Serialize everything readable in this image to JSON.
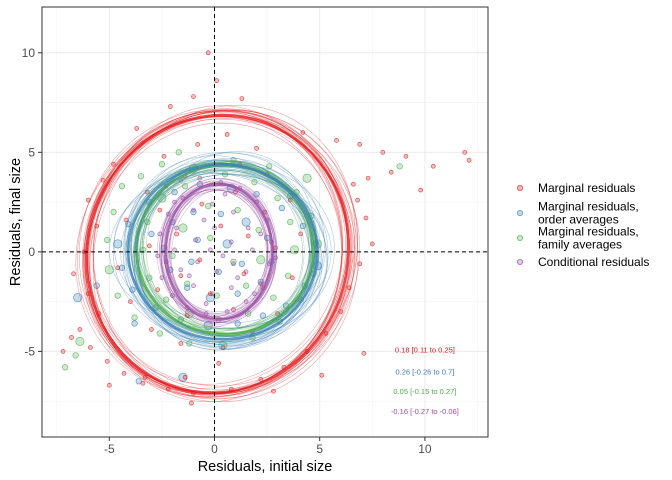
{
  "chart_data": {
    "type": "scatter",
    "xlabel": "Residuals, initial size",
    "ylabel": "Residuals, final size",
    "xlim": [
      -8.2,
      13.0
    ],
    "ylim": [
      -9.3,
      12.3
    ],
    "x_ticks": [
      -5,
      0,
      5,
      10
    ],
    "y_ticks": [
      -5,
      0,
      5,
      10
    ],
    "x_tick_labels": [
      "-5",
      "0",
      "5",
      "10"
    ],
    "y_tick_labels": [
      "-5",
      "0",
      "5",
      "10"
    ],
    "grid": true,
    "reference_lines": [
      {
        "orientation": "vertical",
        "value": 0,
        "style": "dashed"
      },
      {
        "orientation": "horizontal",
        "value": 0,
        "style": "dashed"
      }
    ],
    "legend_position": "right",
    "series": [
      {
        "name": "Marginal residuals",
        "color": "#e41a1c",
        "correlation_label": "0.18 [0.11 to 0.25]",
        "ellipse": {
          "cx": 0.15,
          "cy": -0.1,
          "rx": 6.2,
          "ry": 7.0,
          "tilt_deg": -10
        },
        "points": [
          [
            -0.3,
            10.0
          ],
          [
            0.1,
            8.6
          ],
          [
            -1.0,
            7.8
          ],
          [
            1.3,
            7.7
          ],
          [
            -2.1,
            7.3
          ],
          [
            -3.7,
            6.2
          ],
          [
            4.2,
            6.0
          ],
          [
            5.8,
            5.6
          ],
          [
            6.9,
            5.4
          ],
          [
            8.0,
            5.0
          ],
          [
            9.1,
            4.8
          ],
          [
            10.4,
            4.3
          ],
          [
            11.9,
            5.0
          ],
          [
            12.1,
            4.6
          ],
          [
            8.4,
            4.0
          ],
          [
            7.3,
            3.7
          ],
          [
            6.6,
            3.4
          ],
          [
            9.8,
            3.1
          ],
          [
            -4.8,
            4.4
          ],
          [
            -5.3,
            3.6
          ],
          [
            -6.0,
            2.6
          ],
          [
            -5.6,
            1.3
          ],
          [
            -6.2,
            0.0
          ],
          [
            -6.7,
            -1.1
          ],
          [
            -6.0,
            -2.1
          ],
          [
            -5.5,
            -3.1
          ],
          [
            -6.4,
            -3.9
          ],
          [
            -5.9,
            -4.8
          ],
          [
            -5.1,
            -5.5
          ],
          [
            -4.3,
            -6.1
          ],
          [
            -3.4,
            -6.6
          ],
          [
            -2.2,
            -6.9
          ],
          [
            -1.0,
            -7.1
          ],
          [
            0.8,
            -6.9
          ],
          [
            2.2,
            -6.4
          ],
          [
            3.3,
            -5.8
          ],
          [
            4.4,
            -5.0
          ],
          [
            5.3,
            -4.1
          ],
          [
            6.0,
            -3.0
          ],
          [
            6.4,
            -1.8
          ],
          [
            6.9,
            -0.6
          ],
          [
            7.5,
            0.4
          ],
          [
            7.2,
            1.7
          ],
          [
            6.8,
            2.6
          ],
          [
            2.0,
            5.2
          ],
          [
            0.6,
            5.9
          ],
          [
            -0.8,
            5.4
          ],
          [
            -2.4,
            4.8
          ],
          [
            -3.2,
            3.0
          ],
          [
            -4.2,
            1.6
          ],
          [
            -4.6,
            -0.8
          ],
          [
            -4.0,
            -2.5
          ],
          [
            -3.0,
            -3.9
          ],
          [
            -1.6,
            -4.6
          ],
          [
            0.4,
            -4.8
          ],
          [
            1.8,
            -4.0
          ],
          [
            3.0,
            -3.1
          ],
          [
            3.7,
            -1.3
          ],
          [
            4.1,
            0.9
          ],
          [
            3.6,
            2.6
          ],
          [
            2.5,
            3.9
          ],
          [
            1.2,
            4.4
          ],
          [
            -1.4,
            3.8
          ],
          [
            -2.6,
            2.1
          ],
          [
            -3.1,
            0.3
          ],
          [
            -2.7,
            -1.9
          ],
          [
            -1.3,
            -3.2
          ],
          [
            0.9,
            -2.9
          ],
          [
            2.3,
            -1.8
          ],
          [
            2.9,
            0.2
          ],
          [
            2.4,
            2.0
          ],
          [
            1.0,
            3.0
          ],
          [
            -0.6,
            2.4
          ],
          [
            -1.8,
            0.9
          ],
          [
            -1.6,
            -1.2
          ],
          [
            -0.2,
            -2.1
          ],
          [
            1.4,
            -1.1
          ],
          [
            1.6,
            0.8
          ],
          [
            0.3,
            1.3
          ],
          [
            -0.7,
            -0.4
          ],
          [
            -6.8,
            -4.3
          ],
          [
            -7.2,
            -5.0
          ],
          [
            -3.3,
            -6.3
          ],
          [
            -1.1,
            -7.6
          ],
          [
            2.8,
            -7.0
          ],
          [
            5.1,
            -6.2
          ],
          [
            7.1,
            -5.1
          ],
          [
            -5.0,
            -6.7
          ],
          [
            -1.4,
            -6.3
          ],
          [
            0.2,
            -5.6
          ]
        ]
      },
      {
        "name": "Marginal residuals,\norder averages",
        "color": "#377eb8",
        "correlation_label": "0.26 [-0.26 to 0.7]",
        "ellipse": {
          "cx": 0.4,
          "cy": 0.0,
          "rx": 4.5,
          "ry": 4.4,
          "tilt_deg": -5
        },
        "points": [
          [
            -6.5,
            -2.3
          ],
          [
            -3.8,
            -3.6
          ],
          [
            -3.1,
            2.5
          ],
          [
            -1.9,
            3.0
          ],
          [
            -0.7,
            3.4
          ],
          [
            0.8,
            3.2
          ],
          [
            2.0,
            2.9
          ],
          [
            3.2,
            2.2
          ],
          [
            4.2,
            1.3
          ],
          [
            4.8,
            0.4
          ],
          [
            4.9,
            -0.7
          ],
          [
            4.3,
            -1.7
          ],
          [
            3.4,
            -2.7
          ],
          [
            2.3,
            -3.2
          ],
          [
            1.1,
            -3.6
          ],
          [
            -0.3,
            -3.7
          ],
          [
            -1.6,
            -3.4
          ],
          [
            -2.8,
            -2.8
          ],
          [
            -3.9,
            -1.9
          ],
          [
            -4.4,
            -0.8
          ],
          [
            -4.6,
            0.4
          ],
          [
            -4.1,
            1.4
          ],
          [
            -2.0,
            1.5
          ],
          [
            -1.0,
            2.0
          ],
          [
            0.3,
            1.9
          ],
          [
            1.5,
            1.5
          ],
          [
            2.5,
            0.7
          ],
          [
            2.7,
            -0.5
          ],
          [
            2.2,
            -1.5
          ],
          [
            1.1,
            -2.1
          ],
          [
            -0.2,
            -2.3
          ],
          [
            -1.3,
            -1.8
          ],
          [
            -2.1,
            -0.9
          ],
          [
            -2.4,
            0.2
          ],
          [
            -0.8,
            0.6
          ],
          [
            0.6,
            0.4
          ],
          [
            1.3,
            -0.6
          ],
          [
            0.2,
            -1.0
          ],
          [
            -1.1,
            -0.5
          ],
          [
            -3.6,
            -6.5
          ],
          [
            -1.5,
            -6.3
          ],
          [
            -3.0,
            0.9
          ],
          [
            3.6,
            2.8
          ],
          [
            -5.6,
            -1.7
          ]
        ]
      },
      {
        "name": "Marginal residuals,\nfamily averages",
        "color": "#4daf4a",
        "correlation_label": "0.05 [-0.15 to 0.27]",
        "ellipse": {
          "cx": 0.5,
          "cy": 0.1,
          "rx": 4.2,
          "ry": 4.25,
          "tilt_deg": 0
        },
        "points": [
          [
            -6.4,
            -4.5
          ],
          [
            -6.6,
            -5.2
          ],
          [
            -1.7,
            5.0
          ],
          [
            0.9,
            4.6
          ],
          [
            2.6,
            4.3
          ],
          [
            4.4,
            3.7
          ],
          [
            8.8,
            4.3
          ],
          [
            -4.4,
            3.3
          ],
          [
            -4.8,
            2.0
          ],
          [
            -5.1,
            0.6
          ],
          [
            -5.0,
            -0.9
          ],
          [
            -4.6,
            -2.2
          ],
          [
            -3.8,
            -3.3
          ],
          [
            -2.6,
            -4.1
          ],
          [
            -1.2,
            -4.6
          ],
          [
            0.4,
            -4.7
          ],
          [
            1.8,
            -4.3
          ],
          [
            3.1,
            -3.5
          ],
          [
            4.1,
            -2.4
          ],
          [
            4.7,
            -1.1
          ],
          [
            4.9,
            0.4
          ],
          [
            4.6,
            1.8
          ],
          [
            3.9,
            3.0
          ],
          [
            -3.5,
            3.8
          ],
          [
            -2.5,
            4.4
          ],
          [
            -1.0,
            4.2
          ],
          [
            0.5,
            3.9
          ],
          [
            1.9,
            3.5
          ],
          [
            3.0,
            2.7
          ],
          [
            3.6,
            1.5
          ],
          [
            3.8,
            0.1
          ],
          [
            3.5,
            -1.2
          ],
          [
            2.8,
            -2.3
          ],
          [
            1.6,
            -3.1
          ],
          [
            0.2,
            -3.4
          ],
          [
            -1.2,
            -3.1
          ],
          [
            -2.3,
            -2.4
          ],
          [
            -3.1,
            -1.3
          ],
          [
            -3.4,
            0.1
          ],
          [
            -3.2,
            1.5
          ],
          [
            -2.5,
            2.7
          ],
          [
            -1.4,
            3.3
          ],
          [
            -0.3,
            2.3
          ],
          [
            1.1,
            2.1
          ],
          [
            2.1,
            1.1
          ],
          [
            2.2,
            -0.4
          ],
          [
            1.5,
            -1.7
          ],
          [
            0.1,
            -2.2
          ],
          [
            -1.3,
            -1.6
          ],
          [
            -2.0,
            -0.2
          ],
          [
            -1.5,
            1.2
          ],
          [
            -0.2,
            0.7
          ],
          [
            0.9,
            -0.5
          ],
          [
            -7.1,
            -5.8
          ]
        ]
      },
      {
        "name": "Conditional residuals",
        "color": "#984ea3",
        "correlation_label": "-0.16 [-0.27 to -0.06]",
        "ellipse": {
          "cx": 0.2,
          "cy": 0.0,
          "rx": 2.55,
          "ry": 3.4,
          "tilt_deg": 0
        },
        "points": [
          [
            -2.3,
            3.3
          ],
          [
            -1.6,
            3.6
          ],
          [
            -0.7,
            3.7
          ],
          [
            0.3,
            3.5
          ],
          [
            1.2,
            3.2
          ],
          [
            2.0,
            2.5
          ],
          [
            2.5,
            1.6
          ],
          [
            2.7,
            0.5
          ],
          [
            2.6,
            -0.6
          ],
          [
            2.2,
            -1.6
          ],
          [
            1.5,
            -2.5
          ],
          [
            0.6,
            -3.0
          ],
          [
            -0.4,
            -3.1
          ],
          [
            -1.3,
            -2.8
          ],
          [
            -2.0,
            -2.2
          ],
          [
            -2.5,
            -1.3
          ],
          [
            -2.7,
            -0.2
          ],
          [
            -2.6,
            0.9
          ],
          [
            -2.2,
            1.9
          ],
          [
            -1.5,
            2.7
          ],
          [
            -1.8,
            1.2
          ],
          [
            -1.0,
            2.1
          ],
          [
            -0.1,
            2.4
          ],
          [
            0.9,
            2.0
          ],
          [
            1.6,
            1.2
          ],
          [
            1.8,
            0.1
          ],
          [
            1.5,
            -1.0
          ],
          [
            0.8,
            -1.8
          ],
          [
            -0.1,
            -2.1
          ],
          [
            -1.0,
            -1.7
          ],
          [
            -1.6,
            -0.9
          ],
          [
            -1.9,
            0.1
          ],
          [
            -0.9,
            0.6
          ],
          [
            0.0,
            1.2
          ],
          [
            0.8,
            0.5
          ],
          [
            0.9,
            -0.6
          ],
          [
            0.1,
            -1.0
          ],
          [
            -0.8,
            -0.5
          ],
          [
            -0.2,
            0.1
          ],
          [
            0.4,
            -0.2
          ],
          [
            -0.5,
            1.6
          ],
          [
            1.1,
            -1.3
          ],
          [
            -1.2,
            -1.2
          ],
          [
            2.2,
            0.9
          ],
          [
            -2.3,
            -0.5
          ],
          [
            0.5,
            2.9
          ],
          [
            -0.4,
            -2.6
          ],
          [
            1.9,
            -2.1
          ],
          [
            -1.9,
            2.5
          ],
          [
            2.9,
            -0.3
          ]
        ]
      }
    ]
  }
}
